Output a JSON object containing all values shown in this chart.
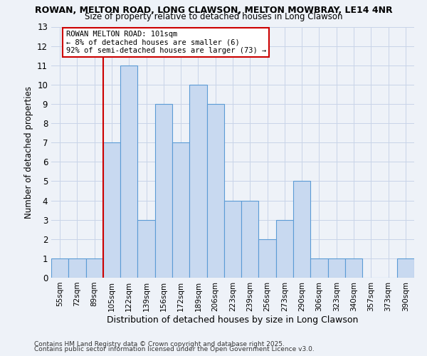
{
  "title1": "ROWAN, MELTON ROAD, LONG CLAWSON, MELTON MOWBRAY, LE14 4NR",
  "title2": "Size of property relative to detached houses in Long Clawson",
  "xlabel": "Distribution of detached houses by size in Long Clawson",
  "ylabel": "Number of detached properties",
  "categories": [
    "55sqm",
    "72sqm",
    "89sqm",
    "105sqm",
    "122sqm",
    "139sqm",
    "156sqm",
    "172sqm",
    "189sqm",
    "206sqm",
    "223sqm",
    "239sqm",
    "256sqm",
    "273sqm",
    "290sqm",
    "306sqm",
    "323sqm",
    "340sqm",
    "357sqm",
    "373sqm",
    "390sqm"
  ],
  "values": [
    1,
    1,
    1,
    7,
    11,
    3,
    9,
    7,
    10,
    9,
    4,
    4,
    2,
    3,
    5,
    1,
    1,
    1,
    0,
    0,
    1
  ],
  "bar_color": "#c8d9f0",
  "bar_edge_color": "#5b9bd5",
  "grid_color": "#c8d4e8",
  "background_color": "#eef2f8",
  "red_line_x": 2.5,
  "annotation_text": "ROWAN MELTON ROAD: 101sqm\n← 8% of detached houses are smaller (6)\n92% of semi-detached houses are larger (73) →",
  "annotation_box_color": "#ffffff",
  "annotation_border_color": "#cc0000",
  "footer1": "Contains HM Land Registry data © Crown copyright and database right 2025.",
  "footer2": "Contains public sector information licensed under the Open Government Licence v3.0.",
  "ylim": [
    0,
    13
  ],
  "yticks": [
    0,
    1,
    2,
    3,
    4,
    5,
    6,
    7,
    8,
    9,
    10,
    11,
    12,
    13
  ]
}
